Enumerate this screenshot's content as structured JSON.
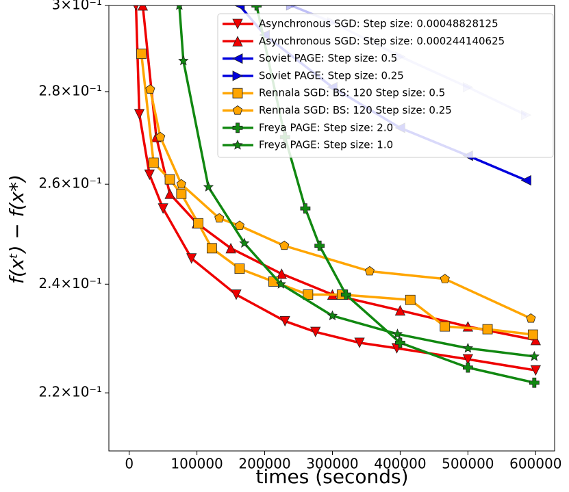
{
  "chart_data": {
    "type": "line",
    "xlabel": "times (seconds)",
    "ylabel": "f(xᵗ) − f(x*)",
    "xlim": [
      -30000,
      628000
    ],
    "xticks": [
      0,
      100000,
      200000,
      300000,
      400000,
      500000,
      600000
    ],
    "ylim": [
      0.21,
      0.3
    ],
    "yscale": "log",
    "yticks": [
      {
        "value": 0.22,
        "label": "2.2×10⁻¹"
      },
      {
        "value": 0.24,
        "label": "2.4×10⁻¹"
      },
      {
        "value": 0.26,
        "label": "2.6×10⁻¹"
      },
      {
        "value": 0.28,
        "label": "2.8×10⁻¹"
      },
      {
        "value": 0.3,
        "label": "3×10⁻¹"
      }
    ],
    "legend": "upper right",
    "series": [
      {
        "name": "Asynchronous SGD: Step size: 0.00048828125",
        "color": "#ee0000",
        "marker": "triangle_down",
        "alpha": 1,
        "x": [
          10000,
          15000,
          30000,
          50000,
          92000,
          158000,
          230000,
          275000,
          340000,
          395000,
          500000,
          600000
        ],
        "values": [
          0.3,
          0.275,
          0.262,
          0.255,
          0.245,
          0.238,
          0.233,
          0.231,
          0.229,
          0.228,
          0.226,
          0.224
        ]
      },
      {
        "name": "Asynchronous SGD: Step size: 0.000244140625",
        "color": "#ee0000",
        "marker": "triangle_up",
        "alpha": 1,
        "x": [
          20000,
          40000,
          60000,
          100000,
          150000,
          225000,
          300000,
          400000,
          500000,
          600000
        ],
        "values": [
          0.3,
          0.27,
          0.258,
          0.252,
          0.247,
          0.242,
          0.238,
          0.235,
          0.232,
          0.2295
        ]
      },
      {
        "name": "Soviet PAGE: Step size: 0.5",
        "color": "#0000dd",
        "marker": "triangle_left",
        "alpha": 1,
        "x": [
          163000,
          200000,
          300000,
          400000,
          500000,
          586000
        ],
        "values": [
          0.3,
          0.293,
          0.281,
          0.272,
          0.266,
          0.2608
        ]
      },
      {
        "name": "Soviet PAGE: Step size: 0.25",
        "color": "#0000dd",
        "marker": "triangle_right",
        "alpha": 0.25,
        "x": [
          239000,
          300000,
          400000,
          500000,
          586000
        ],
        "values": [
          0.3,
          0.296,
          0.288,
          0.281,
          0.2748
        ]
      },
      {
        "name": "Rennala SGD: BS: 120 Step size: 0.5",
        "color": "#ffa500",
        "marker": "square",
        "alpha": 1,
        "x": [
          18000,
          36000,
          60000,
          77000,
          102000,
          122000,
          163000,
          213000,
          264000,
          314000,
          415000,
          466000,
          529000,
          596000
        ],
        "values": [
          0.2886,
          0.2645,
          0.261,
          0.258,
          0.252,
          0.247,
          0.243,
          0.2405,
          0.238,
          0.238,
          0.237,
          0.232,
          0.2315,
          0.2305
        ]
      },
      {
        "name": "Rennala SGD: BS: 120 Step size: 0.25",
        "color": "#ffa500",
        "marker": "pentagon",
        "alpha": 1,
        "x": [
          31000,
          46000,
          77000,
          133000,
          163000,
          229000,
          355000,
          466000,
          593000
        ],
        "values": [
          0.2805,
          0.27,
          0.26,
          0.253,
          0.2515,
          0.2475,
          0.2425,
          0.241,
          0.2335
        ]
      },
      {
        "name": "Freya PAGE: Step size: 2.0",
        "color": "#118811",
        "marker": "plus",
        "alpha": 1,
        "x": [
          188000,
          230000,
          260000,
          281000,
          320000,
          400000,
          500000,
          598000
        ],
        "values": [
          0.3,
          0.27,
          0.255,
          0.2475,
          0.238,
          0.229,
          0.2245,
          0.2218
        ]
      },
      {
        "name": "Freya PAGE: Step size: 1.0",
        "color": "#118811",
        "marker": "star",
        "alpha": 1,
        "x": [
          74000,
          80000,
          117000,
          170000,
          224000,
          300000,
          396000,
          500000,
          598000
        ],
        "values": [
          0.3,
          0.287,
          0.2594,
          0.248,
          0.24,
          0.234,
          0.2306,
          0.228,
          0.2265
        ]
      }
    ]
  }
}
